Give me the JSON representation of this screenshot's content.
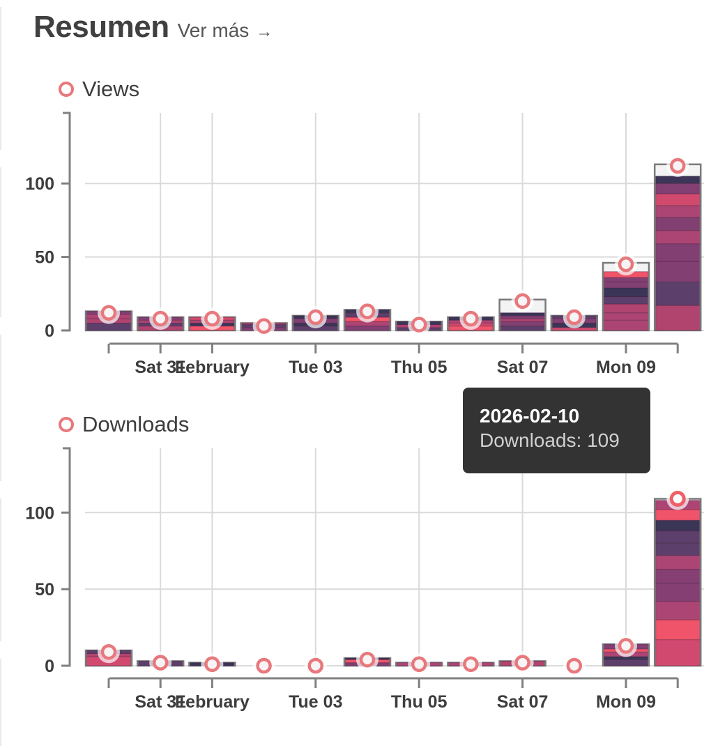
{
  "header": {
    "title": "Resumen",
    "more_label": "Ver más",
    "more_arrow": "→"
  },
  "colors": {
    "accent_ring": "#e8787c",
    "grid": "#dadada",
    "axis": "#808080",
    "bar_outline": "#7a7a7a",
    "bar_remainder": "#f3f3f3",
    "palette": [
      "#b0446f",
      "#5c3f6a",
      "#823f72",
      "#ad4574",
      "#d14a6e",
      "#3b3557",
      "#f0546a",
      "#d2496f",
      "#853f73"
    ]
  },
  "tooltip": {
    "title": "2026-02-10",
    "label": "Downloads: 109"
  },
  "chart_data": [
    {
      "type": "bar",
      "stacked": true,
      "title": "Views",
      "legend": [
        "Views"
      ],
      "legend_position": "top-left",
      "categories": [
        "2026-01-30",
        "2026-01-31",
        "2026-02-01",
        "2026-02-02",
        "2026-02-03",
        "2026-02-04",
        "2026-02-05",
        "2026-02-06",
        "2026-02-07",
        "2026-02-08",
        "2026-02-09",
        "2026-02-10"
      ],
      "values": [
        13,
        9,
        9,
        5,
        10,
        14,
        6,
        9,
        21,
        10,
        46,
        113
      ],
      "point_values": [
        12,
        8,
        8,
        3,
        9,
        13,
        4,
        8,
        20,
        9,
        45,
        112
      ],
      "segments": [
        [
          {
            "v": 5,
            "c": 1
          },
          {
            "v": 3,
            "c": 0
          },
          {
            "v": 3,
            "c": 3
          },
          {
            "v": 2,
            "c": 2
          }
        ],
        [
          {
            "v": 3,
            "c": 0
          },
          {
            "v": 2,
            "c": 1
          },
          {
            "v": 2,
            "c": 3
          },
          {
            "v": 2,
            "c": 2
          }
        ],
        [
          {
            "v": 3,
            "c": 6
          },
          {
            "v": 2,
            "c": 5
          },
          {
            "v": 2,
            "c": 0
          },
          {
            "v": 2,
            "c": 4
          }
        ],
        [
          {
            "v": 2,
            "c": 2
          },
          {
            "v": 2,
            "c": 1
          },
          {
            "v": 1,
            "c": 3
          }
        ],
        [
          {
            "v": 3,
            "c": 1
          },
          {
            "v": 2,
            "c": 5
          },
          {
            "v": 3,
            "c": 2
          },
          {
            "v": 2,
            "c": 5
          }
        ],
        [
          {
            "v": 3,
            "c": 2
          },
          {
            "v": 3,
            "c": 3
          },
          {
            "v": 3,
            "c": 6
          },
          {
            "v": 3,
            "c": 1
          },
          {
            "v": 2,
            "c": 5
          }
        ],
        [
          {
            "v": 2,
            "c": 1
          },
          {
            "v": 2,
            "c": 3
          },
          {
            "v": 2,
            "c": 5
          }
        ],
        [
          {
            "v": 3,
            "c": 6
          },
          {
            "v": 2,
            "c": 4
          },
          {
            "v": 2,
            "c": 3
          },
          {
            "v": 2,
            "c": 5
          }
        ],
        [
          {
            "v": 3,
            "c": 1
          },
          {
            "v": 3,
            "c": 2
          },
          {
            "v": 2,
            "c": 3
          },
          {
            "v": 2,
            "c": 2
          },
          {
            "v": 2,
            "c": 5
          }
        ],
        [
          {
            "v": 2,
            "c": 4
          },
          {
            "v": 3,
            "c": 5
          },
          {
            "v": 3,
            "c": 2
          },
          {
            "v": 2,
            "c": 1
          }
        ],
        [
          {
            "v": 7,
            "c": 3
          },
          {
            "v": 5,
            "c": 3
          },
          {
            "v": 6,
            "c": 0
          },
          {
            "v": 5,
            "c": 1
          },
          {
            "v": 6,
            "c": 5
          },
          {
            "v": 4,
            "c": 2
          },
          {
            "v": 3,
            "c": 2
          },
          {
            "v": 4,
            "c": 6
          }
        ],
        [
          {
            "v": 17,
            "c": 0
          },
          {
            "v": 16,
            "c": 1
          },
          {
            "v": 14,
            "c": 2
          },
          {
            "v": 12,
            "c": 2
          },
          {
            "v": 9,
            "c": 3
          },
          {
            "v": 9,
            "c": 2
          },
          {
            "v": 8,
            "c": 3
          },
          {
            "v": 8,
            "c": 4
          },
          {
            "v": 7,
            "c": 2
          },
          {
            "v": 5,
            "c": 5
          }
        ]
      ],
      "yticks": [
        0,
        50,
        100
      ],
      "ylim": [
        0,
        148
      ],
      "xticks": [
        {
          "i": 0,
          "label": ""
        },
        {
          "i": 1,
          "label": "Sat 31"
        },
        {
          "i": 2,
          "label": "February"
        },
        {
          "i": 4,
          "label": "Tue 03"
        },
        {
          "i": 6,
          "label": "Thu 05"
        },
        {
          "i": 8,
          "label": "Sat 07"
        },
        {
          "i": 10,
          "label": "Mon 09"
        },
        {
          "i": 11,
          "label": ""
        }
      ],
      "grid": true,
      "xlabel": "",
      "ylabel": ""
    },
    {
      "type": "bar",
      "stacked": true,
      "title": "Downloads",
      "legend": [
        "Downloads"
      ],
      "legend_position": "top-left",
      "categories": [
        "2026-01-30",
        "2026-01-31",
        "2026-02-01",
        "2026-02-02",
        "2026-02-03",
        "2026-02-04",
        "2026-02-05",
        "2026-02-06",
        "2026-02-07",
        "2026-02-08",
        "2026-02-09",
        "2026-02-10"
      ],
      "values": [
        10,
        3,
        2,
        0,
        0,
        5,
        2,
        2,
        3,
        0,
        14,
        109
      ],
      "point_values": [
        9,
        2,
        1,
        0,
        0,
        4,
        1,
        1,
        2,
        0,
        13,
        109
      ],
      "segments": [
        [
          {
            "v": 6,
            "c": 7
          },
          {
            "v": 2,
            "c": 0
          },
          {
            "v": 2,
            "c": 1
          }
        ],
        [
          {
            "v": 3,
            "c": 1
          }
        ],
        [
          {
            "v": 2,
            "c": 5
          }
        ],
        [],
        [],
        [
          {
            "v": 2,
            "c": 2
          },
          {
            "v": 2,
            "c": 6
          },
          {
            "v": 1,
            "c": 5
          }
        ],
        [
          {
            "v": 2,
            "c": 3
          }
        ],
        [
          {
            "v": 2,
            "c": 3
          }
        ],
        [
          {
            "v": 3,
            "c": 0
          }
        ],
        [],
        [
          {
            "v": 4,
            "c": 1
          },
          {
            "v": 2,
            "c": 5
          },
          {
            "v": 3,
            "c": 3
          },
          {
            "v": 2,
            "c": 6
          },
          {
            "v": 3,
            "c": 2
          }
        ],
        [
          {
            "v": 17,
            "c": 7
          },
          {
            "v": 13,
            "c": 6
          },
          {
            "v": 12,
            "c": 3
          },
          {
            "v": 12,
            "c": 8
          },
          {
            "v": 9,
            "c": 8
          },
          {
            "v": 9,
            "c": 3
          },
          {
            "v": 8,
            "c": 1
          },
          {
            "v": 8,
            "c": 1
          },
          {
            "v": 7,
            "c": 5
          },
          {
            "v": 7,
            "c": 6
          },
          {
            "v": 6,
            "c": 3
          }
        ]
      ],
      "yticks": [
        0,
        50,
        100
      ],
      "ylim": [
        0,
        142
      ],
      "xticks": [
        {
          "i": 0,
          "label": ""
        },
        {
          "i": 1,
          "label": "Sat 31"
        },
        {
          "i": 2,
          "label": "February"
        },
        {
          "i": 4,
          "label": "Tue 03"
        },
        {
          "i": 6,
          "label": "Thu 05"
        },
        {
          "i": 8,
          "label": "Sat 07"
        },
        {
          "i": 10,
          "label": "Mon 09"
        },
        {
          "i": 11,
          "label": ""
        }
      ],
      "grid": true,
      "xlabel": "",
      "ylabel": "",
      "highlighted_index": 11
    }
  ]
}
